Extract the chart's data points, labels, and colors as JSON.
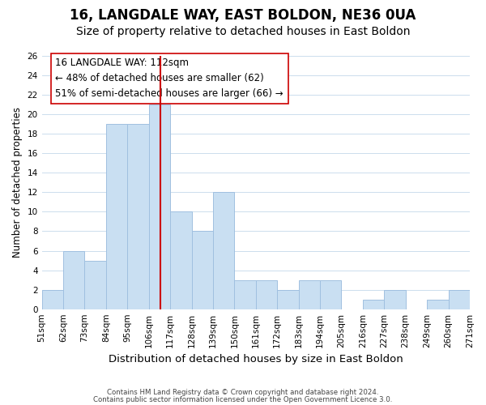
{
  "title": "16, LANGDALE WAY, EAST BOLDON, NE36 0UA",
  "subtitle": "Size of property relative to detached houses in East Boldon",
  "xlabel": "Distribution of detached houses by size in East Boldon",
  "ylabel": "Number of detached properties",
  "bin_labels": [
    "51sqm",
    "62sqm",
    "73sqm",
    "84sqm",
    "95sqm",
    "106sqm",
    "117sqm",
    "128sqm",
    "139sqm",
    "150sqm",
    "161sqm",
    "172sqm",
    "183sqm",
    "194sqm",
    "205sqm",
    "216sqm",
    "227sqm",
    "238sqm",
    "249sqm",
    "260sqm",
    "271sqm"
  ],
  "heights": [
    2,
    6,
    5,
    19,
    19,
    21,
    10,
    8,
    12,
    3,
    3,
    2,
    3,
    3,
    0,
    1,
    2,
    0,
    1,
    2
  ],
  "bin_edges": [
    51,
    62,
    73,
    84,
    95,
    106,
    117,
    128,
    139,
    150,
    161,
    172,
    183,
    194,
    205,
    216,
    227,
    238,
    249,
    260,
    271
  ],
  "bar_color": "#c9dff2",
  "bar_edge_color": "#a0c0e0",
  "vline_x": 112,
  "vline_color": "#cc0000",
  "annotation_box_edge": "#cc0000",
  "annotation_lines": [
    "16 LANGDALE WAY: 112sqm",
    "← 48% of detached houses are smaller (62)",
    "51% of semi-detached houses are larger (66) →"
  ],
  "annotation_fontsize": 8.5,
  "yticks": [
    0,
    2,
    4,
    6,
    8,
    10,
    12,
    14,
    16,
    18,
    20,
    22,
    24,
    26
  ],
  "ylim": [
    0,
    26
  ],
  "footer1": "Contains HM Land Registry data © Crown copyright and database right 2024.",
  "footer2": "Contains public sector information licensed under the Open Government Licence 3.0.",
  "title_fontsize": 12,
  "subtitle_fontsize": 10,
  "xlabel_fontsize": 9.5,
  "ylabel_fontsize": 8.5,
  "tick_fontsize": 7.5
}
